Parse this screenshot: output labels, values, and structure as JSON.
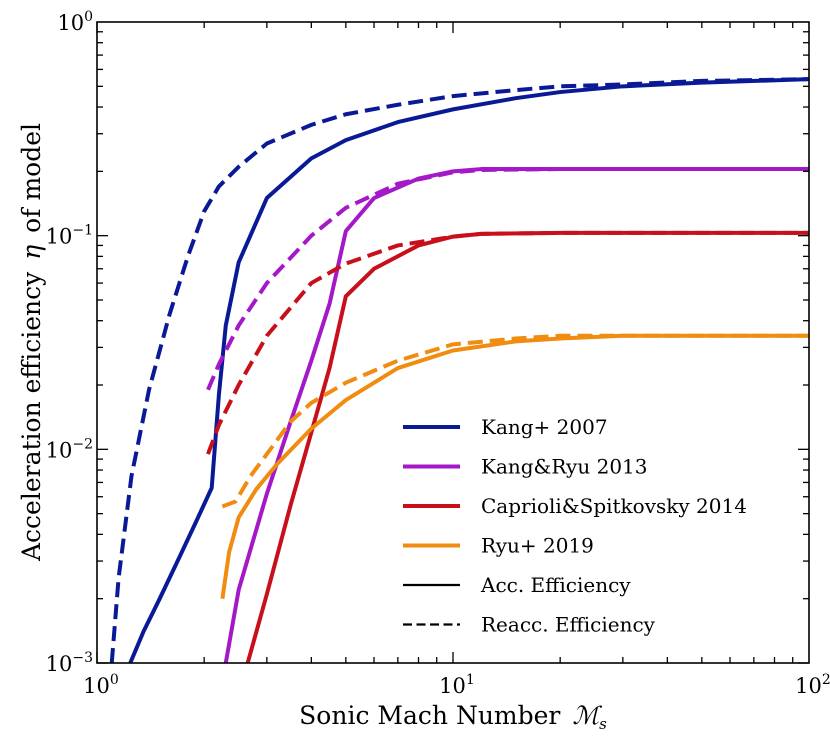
{
  "chart_data": {
    "type": "line",
    "xscale": "log",
    "yscale": "log",
    "xlim": [
      1,
      100
    ],
    "ylim": [
      0.001,
      1
    ],
    "xlabel": "Sonic Mach Number  ℳs",
    "xlabel_main": "Sonic Mach Number",
    "xlabel_symbol": "ℳ",
    "xlabel_sub": "s",
    "ylabel": "Acceleration efficiency  η  of model",
    "ylabel_left": "Acceleration efficiency",
    "ylabel_symbol": "η",
    "ylabel_right": "of model",
    "xticks": [
      {
        "base": "10",
        "exp": "0",
        "value": 1
      },
      {
        "base": "10",
        "exp": "1",
        "value": 10
      },
      {
        "base": "10",
        "exp": "2",
        "value": 100
      }
    ],
    "yticks": [
      {
        "base": "10",
        "exp": "−3",
        "value": 0.001
      },
      {
        "base": "10",
        "exp": "−2",
        "value": 0.01
      },
      {
        "base": "10",
        "exp": "−1",
        "value": 0.1
      },
      {
        "base": "10",
        "exp": "0",
        "value": 1
      }
    ],
    "legend_position": "lower-right",
    "series": [
      {
        "name": "Kang+ 2007 (Acc.)",
        "model": "Kang+ 2007",
        "style": "solid",
        "color": "#0a1a96",
        "x": [
          1.24,
          1.35,
          1.5,
          1.7,
          1.9,
          2.1,
          2.2,
          2.3,
          2.5,
          3,
          4,
          5,
          7,
          10,
          15,
          20,
          30,
          50,
          100
        ],
        "y": [
          0.001,
          0.0014,
          0.002,
          0.0031,
          0.0046,
          0.0066,
          0.018,
          0.038,
          0.075,
          0.15,
          0.23,
          0.28,
          0.34,
          0.39,
          0.44,
          0.47,
          0.5,
          0.52,
          0.54
        ]
      },
      {
        "name": "Kang+ 2007 (Reacc.)",
        "model": "Kang+ 2007",
        "style": "dashed",
        "color": "#0a1a96",
        "x": [
          1.1,
          1.15,
          1.25,
          1.4,
          1.6,
          1.8,
          2,
          2.2,
          2.5,
          3,
          4,
          5,
          7,
          10,
          15,
          20,
          30,
          50,
          100
        ],
        "y": [
          0.001,
          0.0025,
          0.0075,
          0.019,
          0.043,
          0.08,
          0.13,
          0.17,
          0.21,
          0.27,
          0.33,
          0.37,
          0.41,
          0.45,
          0.48,
          0.5,
          0.51,
          0.53,
          0.54
        ]
      },
      {
        "name": "Kang&Ryu 2013 (Acc.)",
        "model": "Kang&Ryu 2013",
        "style": "solid",
        "color": "#a418c8",
        "x": [
          2.3,
          2.5,
          3,
          3.5,
          4,
          4.5,
          5,
          6,
          8,
          10,
          12,
          20,
          100
        ],
        "y": [
          0.001,
          0.0022,
          0.0062,
          0.0135,
          0.026,
          0.048,
          0.105,
          0.15,
          0.185,
          0.2,
          0.205,
          0.205,
          0.205
        ]
      },
      {
        "name": "Kang&Ryu 2013 (Reacc.)",
        "model": "Kang&Ryu 2013",
        "style": "dashed",
        "color": "#a418c8",
        "x": [
          2.05,
          2.2,
          2.5,
          3,
          4,
          5,
          7,
          10,
          12,
          20,
          100
        ],
        "y": [
          0.019,
          0.025,
          0.038,
          0.06,
          0.1,
          0.135,
          0.175,
          0.198,
          0.203,
          0.205,
          0.205
        ]
      },
      {
        "name": "Caprioli&Spitkovsky 2014 (Acc.)",
        "model": "Caprioli&Spitkovsky 2014",
        "style": "solid",
        "color": "#c8101a",
        "x": [
          2.65,
          3,
          3.5,
          4,
          4.5,
          5,
          6,
          8,
          10,
          12,
          20,
          100
        ],
        "y": [
          0.001,
          0.0021,
          0.0055,
          0.012,
          0.024,
          0.052,
          0.07,
          0.09,
          0.099,
          0.102,
          0.103,
          0.103
        ]
      },
      {
        "name": "Caprioli&Spitkovsky 2014 (Reacc.)",
        "model": "Caprioli&Spitkovsky 2014",
        "style": "dashed",
        "color": "#c8101a",
        "x": [
          2.05,
          2.2,
          2.5,
          3,
          4,
          5,
          7,
          10,
          12,
          20,
          100
        ],
        "y": [
          0.0095,
          0.013,
          0.02,
          0.034,
          0.06,
          0.074,
          0.09,
          0.099,
          0.102,
          0.103,
          0.103
        ]
      },
      {
        "name": "Ryu+ 2019 (Acc.)",
        "model": "Ryu+ 2019",
        "style": "solid",
        "color": "#f08c10",
        "x": [
          2.25,
          2.35,
          2.5,
          2.8,
          3.2,
          4,
          5,
          7,
          10,
          15,
          20,
          30,
          50,
          100
        ],
        "y": [
          0.002,
          0.0033,
          0.0048,
          0.0065,
          0.0085,
          0.0125,
          0.017,
          0.024,
          0.029,
          0.032,
          0.033,
          0.034,
          0.034,
          0.034
        ]
      },
      {
        "name": "Ryu+ 2019 (Reacc.)",
        "model": "Ryu+ 2019",
        "style": "dashed",
        "color": "#f08c10",
        "x": [
          2.25,
          2.45,
          2.7,
          3,
          3.5,
          4,
          5,
          7,
          10,
          15,
          20,
          30,
          50,
          100
        ],
        "y": [
          0.0054,
          0.0057,
          0.0075,
          0.0095,
          0.0135,
          0.0165,
          0.0205,
          0.026,
          0.031,
          0.033,
          0.034,
          0.034,
          0.034,
          0.034
        ]
      }
    ],
    "legend": [
      {
        "label": "Kang+ 2007",
        "color": "#0a1a96",
        "style": "solid"
      },
      {
        "label": "Kang&Ryu 2013",
        "color": "#a418c8",
        "style": "solid"
      },
      {
        "label": "Caprioli&Spitkovsky 2014",
        "color": "#c8101a",
        "style": "solid"
      },
      {
        "label": "Ryu+ 2019",
        "color": "#f08c10",
        "style": "solid"
      },
      {
        "label": "Acc. Efficiency",
        "color": "#000000",
        "style": "solid"
      },
      {
        "label": "Reacc. Efficiency",
        "color": "#000000",
        "style": "dashed"
      }
    ]
  }
}
